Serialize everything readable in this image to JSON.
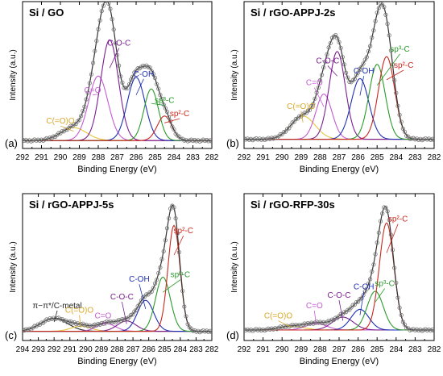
{
  "chart_data": [
    {
      "type": "line",
      "panel_label": "(a)",
      "title": "Si / GO",
      "xlabel": "Binding Energy (eV)",
      "ylabel": "Intensity (a.u.)",
      "xlim": [
        292,
        282
      ],
      "xticks": [
        292,
        291,
        290,
        289,
        288,
        287,
        286,
        285,
        284,
        283,
        282
      ],
      "ylim": [
        0,
        1
      ],
      "y_tick_labels": false,
      "legend": "none",
      "background": 0.03,
      "peaks": [
        {
          "name": "C(=O)O",
          "label_display": "C(=O)O",
          "center": 289.3,
          "height": 0.1,
          "fwhm": 1.6,
          "color": "#e8c33c"
        },
        {
          "name": "C=O",
          "label_display": "C=O",
          "center": 288.0,
          "height": 0.5,
          "fwhm": 1.2,
          "color": "#c35cd0"
        },
        {
          "name": "C-O-C",
          "label_display": "C-O-C",
          "center": 287.4,
          "height": 0.78,
          "fwhm": 1.1,
          "color": "#7a1e8f"
        },
        {
          "name": "C-OH",
          "label_display": "C-OH",
          "center": 286.0,
          "height": 0.49,
          "fwhm": 1.1,
          "color": "#1f2fb5"
        },
        {
          "name": "sp3-C",
          "label_display": "sp³-C",
          "center": 285.2,
          "height": 0.4,
          "fwhm": 0.9,
          "color": "#2a9a2a"
        },
        {
          "name": "sp2-C",
          "label_display": "sp²-C",
          "center": 284.5,
          "height": 0.19,
          "fwhm": 0.9,
          "color": "#c8281e"
        }
      ]
    },
    {
      "type": "line",
      "panel_label": "(b)",
      "title": "Si / rGO-APPJ-2s",
      "xlabel": "Binding Energy (eV)",
      "ylabel": "Intensity (a.u.)",
      "xlim": [
        292,
        282
      ],
      "xticks": [
        292,
        291,
        290,
        289,
        288,
        287,
        286,
        285,
        284,
        283,
        282
      ],
      "ylim": [
        0,
        1
      ],
      "y_tick_labels": false,
      "legend": "none",
      "background": 0.04,
      "peaks": [
        {
          "name": "C(=O)O",
          "label_display": "C(=O)O",
          "center": 288.9,
          "height": 0.18,
          "fwhm": 1.5,
          "color": "#e8c33c"
        },
        {
          "name": "C=O",
          "label_display": "C=O",
          "center": 287.8,
          "height": 0.35,
          "fwhm": 1.0,
          "color": "#c35cd0"
        },
        {
          "name": "C-O-C",
          "label_display": "C-O-C",
          "center": 287.1,
          "height": 0.68,
          "fwhm": 1.0,
          "color": "#7a1e8f"
        },
        {
          "name": "C-OH",
          "label_display": "C-OH",
          "center": 285.9,
          "height": 0.47,
          "fwhm": 1.1,
          "color": "#1f2fb5"
        },
        {
          "name": "sp3-C",
          "label_display": "sp³-C",
          "center": 285.0,
          "height": 0.58,
          "fwhm": 1.0,
          "color": "#2a9a2a"
        },
        {
          "name": "sp2-C",
          "label_display": "sp²-C",
          "center": 284.5,
          "height": 0.64,
          "fwhm": 1.0,
          "color": "#c8281e"
        }
      ]
    },
    {
      "type": "line",
      "panel_label": "(c)",
      "title": "Si / rGO-APPJ-5s",
      "xlabel": "Binding Energy (eV)",
      "ylabel": "Intensity (a.u.)",
      "xlim": [
        294,
        282
      ],
      "xticks": [
        294,
        293,
        292,
        291,
        290,
        289,
        288,
        287,
        286,
        285,
        284,
        283,
        282
      ],
      "ylim": [
        0,
        1
      ],
      "y_tick_labels": false,
      "legend": "none",
      "background": 0.04,
      "peaks": [
        {
          "name": "π–π*/C-metal",
          "label_display": "π−π*/C-metal",
          "center": 292.0,
          "height": 0.1,
          "fwhm": 2.0,
          "color": "#222222"
        },
        {
          "name": "C(=O)O",
          "label_display": "C(=O)O",
          "center": 290.3,
          "height": 0.04,
          "fwhm": 1.5,
          "color": "#e8c33c"
        },
        {
          "name": "C=O",
          "label_display": "C=O",
          "center": 288.7,
          "height": 0.06,
          "fwhm": 1.4,
          "color": "#c35cd0"
        },
        {
          "name": "C-O-C",
          "label_display": "C-O-C",
          "center": 287.4,
          "height": 0.08,
          "fwhm": 1.4,
          "color": "#7a1e8f"
        },
        {
          "name": "C-OH",
          "label_display": "C-OH",
          "center": 286.2,
          "height": 0.24,
          "fwhm": 1.2,
          "color": "#1f2fb5"
        },
        {
          "name": "sp3-C",
          "label_display": "sp³-C",
          "center": 285.1,
          "height": 0.42,
          "fwhm": 1.1,
          "color": "#2a9a2a"
        },
        {
          "name": "sp2-C",
          "label_display": "sp²-C",
          "center": 284.4,
          "height": 0.82,
          "fwhm": 0.9,
          "color": "#c8281e"
        }
      ]
    },
    {
      "type": "line",
      "panel_label": "(d)",
      "title": "Si / rGO-RFP-30s",
      "xlabel": "Binding Energy (eV)",
      "ylabel": "Intensity (a.u.)",
      "xlim": [
        292,
        282
      ],
      "xticks": [
        292,
        291,
        290,
        289,
        288,
        287,
        286,
        285,
        284,
        283,
        282
      ],
      "ylim": [
        0,
        1
      ],
      "y_tick_labels": false,
      "legend": "none",
      "background": 0.05,
      "peaks": [
        {
          "name": "C(=O)O",
          "label_display": "C(=O)O",
          "center": 289.5,
          "height": 0.03,
          "fwhm": 1.5,
          "color": "#e8c33c"
        },
        {
          "name": "C=O",
          "label_display": "C=O",
          "center": 288.2,
          "height": 0.05,
          "fwhm": 1.3,
          "color": "#c35cd0"
        },
        {
          "name": "C-O-C",
          "label_display": "C-O-C",
          "center": 286.8,
          "height": 0.1,
          "fwhm": 1.3,
          "color": "#7a1e8f"
        },
        {
          "name": "C-OH",
          "label_display": "C-OH",
          "center": 285.9,
          "height": 0.16,
          "fwhm": 1.1,
          "color": "#1f2fb5"
        },
        {
          "name": "sp3-C",
          "label_display": "sp³-C",
          "center": 285.1,
          "height": 0.3,
          "fwhm": 1.0,
          "color": "#2a9a2a"
        },
        {
          "name": "sp2-C",
          "label_display": "sp²-C",
          "center": 284.5,
          "height": 0.83,
          "fwhm": 0.9,
          "color": "#c8281e"
        }
      ]
    }
  ]
}
